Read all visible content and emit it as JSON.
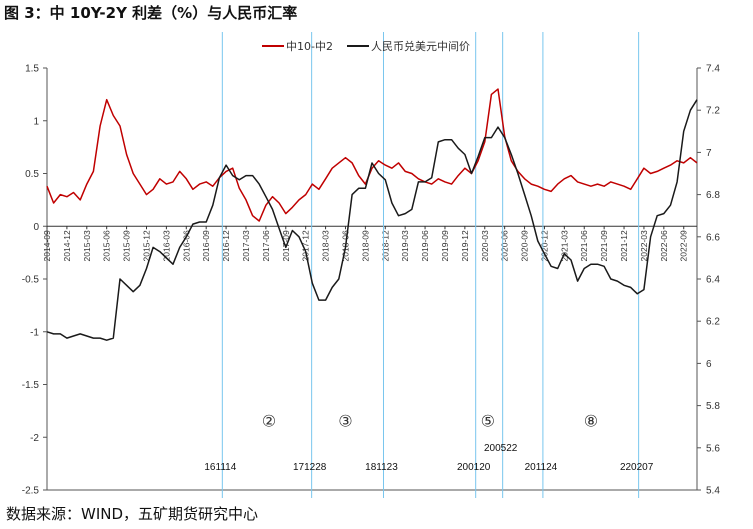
{
  "title": "图 3：中 10Y-2Y 利差（%）与人民币汇率",
  "source": "数据来源：WIND，五矿期货研究中心",
  "chart_data": {
    "type": "line",
    "title": "图 3：中 10Y-2Y 利差（%）与人民币汇率",
    "x_start": "2014-09",
    "x_end": "2022-11",
    "x_tick_labels": [
      "2014-09",
      "2014-12",
      "2015-03",
      "2015-06",
      "2015-09",
      "2015-12",
      "2016-03",
      "2016-06",
      "2016-09",
      "2016-12",
      "2017-03",
      "2017-06",
      "2017-09",
      "2017-12",
      "2018-03",
      "2018-06",
      "2018-09",
      "2018-12",
      "2019-03",
      "2019-06",
      "2019-09",
      "2019-12",
      "2020-03",
      "2020-06",
      "2020-09",
      "2020-12",
      "2021-03",
      "2021-06",
      "2021-09",
      "2021-12",
      "2022-03",
      "2022-06",
      "2022-09"
    ],
    "y_left": {
      "min": -2.5,
      "max": 1.5,
      "ticks": [
        1.5,
        1,
        0.5,
        0,
        -0.5,
        -1,
        -1.5,
        -2,
        -2.5
      ],
      "tick_labels": [
        "1.5",
        "1",
        "0.5",
        "0",
        "-0.5",
        "-1",
        "-1.5",
        "-2",
        "-2.5"
      ]
    },
    "y_right": {
      "min": 5.4,
      "max": 7.4,
      "ticks": [
        7.4,
        7.2,
        7,
        6.8,
        6.6,
        6.4,
        6.2,
        6,
        5.8,
        5.6,
        5.4
      ],
      "tick_labels": [
        "7.4",
        "7.2",
        "7",
        "6.8",
        "6.6",
        "6.4",
        "6.2",
        "6",
        "5.8",
        "5.6",
        "5.4"
      ]
    },
    "legend": {
      "position": "top-center"
    },
    "series": [
      {
        "name": "中10-中2",
        "axis": "left",
        "color": "#c00000",
        "points": [
          [
            "2014-09",
            0.38
          ],
          [
            "2014-10",
            0.22
          ],
          [
            "2014-11",
            0.3
          ],
          [
            "2014-12",
            0.28
          ],
          [
            "2015-01",
            0.32
          ],
          [
            "2015-02",
            0.25
          ],
          [
            "2015-03",
            0.4
          ],
          [
            "2015-04",
            0.52
          ],
          [
            "2015-05",
            0.95
          ],
          [
            "2015-06",
            1.2
          ],
          [
            "2015-07",
            1.05
          ],
          [
            "2015-08",
            0.95
          ],
          [
            "2015-09",
            0.68
          ],
          [
            "2015-10",
            0.5
          ],
          [
            "2015-11",
            0.4
          ],
          [
            "2015-12",
            0.3
          ],
          [
            "2016-01",
            0.35
          ],
          [
            "2016-02",
            0.45
          ],
          [
            "2016-03",
            0.4
          ],
          [
            "2016-04",
            0.42
          ],
          [
            "2016-05",
            0.52
          ],
          [
            "2016-06",
            0.45
          ],
          [
            "2016-07",
            0.35
          ],
          [
            "2016-08",
            0.4
          ],
          [
            "2016-09",
            0.42
          ],
          [
            "2016-10",
            0.38
          ],
          [
            "2016-11",
            0.46
          ],
          [
            "2016-12",
            0.52
          ],
          [
            "2017-01",
            0.55
          ],
          [
            "2017-02",
            0.36
          ],
          [
            "2017-03",
            0.25
          ],
          [
            "2017-04",
            0.1
          ],
          [
            "2017-05",
            0.05
          ],
          [
            "2017-06",
            0.2
          ],
          [
            "2017-07",
            0.28
          ],
          [
            "2017-08",
            0.22
          ],
          [
            "2017-09",
            0.12
          ],
          [
            "2017-10",
            0.18
          ],
          [
            "2017-11",
            0.25
          ],
          [
            "2017-12",
            0.3
          ],
          [
            "2018-01",
            0.4
          ],
          [
            "2018-02",
            0.35
          ],
          [
            "2018-03",
            0.45
          ],
          [
            "2018-04",
            0.55
          ],
          [
            "2018-05",
            0.6
          ],
          [
            "2018-06",
            0.65
          ],
          [
            "2018-07",
            0.6
          ],
          [
            "2018-08",
            0.48
          ],
          [
            "2018-09",
            0.4
          ],
          [
            "2018-10",
            0.55
          ],
          [
            "2018-11",
            0.62
          ],
          [
            "2018-12",
            0.58
          ],
          [
            "2019-01",
            0.55
          ],
          [
            "2019-02",
            0.6
          ],
          [
            "2019-03",
            0.52
          ],
          [
            "2019-04",
            0.5
          ],
          [
            "2019-05",
            0.45
          ],
          [
            "2019-06",
            0.42
          ],
          [
            "2019-07",
            0.4
          ],
          [
            "2019-08",
            0.45
          ],
          [
            "2019-09",
            0.42
          ],
          [
            "2019-10",
            0.4
          ],
          [
            "2019-11",
            0.48
          ],
          [
            "2019-12",
            0.55
          ],
          [
            "2020-01",
            0.5
          ],
          [
            "2020-02",
            0.62
          ],
          [
            "2020-03",
            0.8
          ],
          [
            "2020-04",
            1.25
          ],
          [
            "2020-05",
            1.3
          ],
          [
            "2020-06",
            0.85
          ],
          [
            "2020-07",
            0.62
          ],
          [
            "2020-08",
            0.52
          ],
          [
            "2020-09",
            0.45
          ],
          [
            "2020-10",
            0.4
          ],
          [
            "2020-11",
            0.38
          ],
          [
            "2020-12",
            0.35
          ],
          [
            "2021-01",
            0.33
          ],
          [
            "2021-02",
            0.4
          ],
          [
            "2021-03",
            0.45
          ],
          [
            "2021-04",
            0.48
          ],
          [
            "2021-05",
            0.42
          ],
          [
            "2021-06",
            0.4
          ],
          [
            "2021-07",
            0.38
          ],
          [
            "2021-08",
            0.4
          ],
          [
            "2021-09",
            0.38
          ],
          [
            "2021-10",
            0.42
          ],
          [
            "2021-11",
            0.4
          ],
          [
            "2021-12",
            0.38
          ],
          [
            "2022-01",
            0.35
          ],
          [
            "2022-02",
            0.45
          ],
          [
            "2022-03",
            0.55
          ],
          [
            "2022-04",
            0.5
          ],
          [
            "2022-05",
            0.52
          ],
          [
            "2022-06",
            0.55
          ],
          [
            "2022-07",
            0.58
          ],
          [
            "2022-08",
            0.62
          ],
          [
            "2022-09",
            0.6
          ],
          [
            "2022-10",
            0.65
          ],
          [
            "2022-11",
            0.6
          ]
        ]
      },
      {
        "name": "人民币兑美元中间价",
        "axis": "right",
        "color": "#1a1a1a",
        "points": [
          [
            "2014-09",
            6.15
          ],
          [
            "2014-10",
            6.14
          ],
          [
            "2014-11",
            6.14
          ],
          [
            "2014-12",
            6.12
          ],
          [
            "2015-01",
            6.13
          ],
          [
            "2015-02",
            6.14
          ],
          [
            "2015-03",
            6.13
          ],
          [
            "2015-04",
            6.12
          ],
          [
            "2015-05",
            6.12
          ],
          [
            "2015-06",
            6.11
          ],
          [
            "2015-07",
            6.12
          ],
          [
            "2015-08",
            6.4
          ],
          [
            "2015-09",
            6.37
          ],
          [
            "2015-10",
            6.34
          ],
          [
            "2015-11",
            6.37
          ],
          [
            "2015-12",
            6.45
          ],
          [
            "2016-01",
            6.55
          ],
          [
            "2016-02",
            6.53
          ],
          [
            "2016-03",
            6.5
          ],
          [
            "2016-04",
            6.47
          ],
          [
            "2016-05",
            6.55
          ],
          [
            "2016-06",
            6.6
          ],
          [
            "2016-07",
            6.66
          ],
          [
            "2016-08",
            6.67
          ],
          [
            "2016-09",
            6.67
          ],
          [
            "2016-10",
            6.75
          ],
          [
            "2016-11",
            6.88
          ],
          [
            "2016-12",
            6.94
          ],
          [
            "2017-01",
            6.89
          ],
          [
            "2017-02",
            6.87
          ],
          [
            "2017-03",
            6.89
          ],
          [
            "2017-04",
            6.89
          ],
          [
            "2017-05",
            6.85
          ],
          [
            "2017-06",
            6.79
          ],
          [
            "2017-07",
            6.73
          ],
          [
            "2017-08",
            6.64
          ],
          [
            "2017-09",
            6.55
          ],
          [
            "2017-10",
            6.63
          ],
          [
            "2017-11",
            6.6
          ],
          [
            "2017-12",
            6.53
          ],
          [
            "2018-01",
            6.38
          ],
          [
            "2018-02",
            6.3
          ],
          [
            "2018-03",
            6.3
          ],
          [
            "2018-04",
            6.36
          ],
          [
            "2018-05",
            6.4
          ],
          [
            "2018-06",
            6.55
          ],
          [
            "2018-07",
            6.8
          ],
          [
            "2018-08",
            6.83
          ],
          [
            "2018-09",
            6.83
          ],
          [
            "2018-10",
            6.95
          ],
          [
            "2018-11",
            6.9
          ],
          [
            "2018-12",
            6.87
          ],
          [
            "2019-01",
            6.76
          ],
          [
            "2019-02",
            6.7
          ],
          [
            "2019-03",
            6.71
          ],
          [
            "2019-04",
            6.73
          ],
          [
            "2019-05",
            6.86
          ],
          [
            "2019-06",
            6.86
          ],
          [
            "2019-07",
            6.88
          ],
          [
            "2019-08",
            7.05
          ],
          [
            "2019-09",
            7.06
          ],
          [
            "2019-10",
            7.06
          ],
          [
            "2019-11",
            7.02
          ],
          [
            "2019-12",
            6.99
          ],
          [
            "2020-01",
            6.9
          ],
          [
            "2020-02",
            6.98
          ],
          [
            "2020-03",
            7.07
          ],
          [
            "2020-04",
            7.07
          ],
          [
            "2020-05",
            7.12
          ],
          [
            "2020-06",
            7.07
          ],
          [
            "2020-07",
            6.99
          ],
          [
            "2020-08",
            6.9
          ],
          [
            "2020-09",
            6.8
          ],
          [
            "2020-10",
            6.7
          ],
          [
            "2020-11",
            6.58
          ],
          [
            "2020-12",
            6.52
          ],
          [
            "2021-01",
            6.46
          ],
          [
            "2021-02",
            6.45
          ],
          [
            "2021-03",
            6.52
          ],
          [
            "2021-04",
            6.49
          ],
          [
            "2021-05",
            6.39
          ],
          [
            "2021-06",
            6.45
          ],
          [
            "2021-07",
            6.47
          ],
          [
            "2021-08",
            6.47
          ],
          [
            "2021-09",
            6.46
          ],
          [
            "2021-10",
            6.4
          ],
          [
            "2021-11",
            6.39
          ],
          [
            "2021-12",
            6.37
          ],
          [
            "2022-01",
            6.36
          ],
          [
            "2022-02",
            6.33
          ],
          [
            "2022-03",
            6.35
          ],
          [
            "2022-04",
            6.6
          ],
          [
            "2022-05",
            6.7
          ],
          [
            "2022-06",
            6.71
          ],
          [
            "2022-07",
            6.75
          ],
          [
            "2022-08",
            6.86
          ],
          [
            "2022-09",
            7.1
          ],
          [
            "2022-10",
            7.2
          ],
          [
            "2022-11",
            7.25
          ]
        ]
      }
    ],
    "vertical_lines": [
      {
        "label": "161114",
        "date": "2016-11-14"
      },
      {
        "label": "171228",
        "date": "2017-12-28"
      },
      {
        "label": "181123",
        "date": "2018-11-23"
      },
      {
        "label": "200120",
        "date": "2020-01-20"
      },
      {
        "label": "200522",
        "date": "2020-05-22"
      },
      {
        "label": "201124",
        "date": "2020-11-24"
      },
      {
        "label": "220207",
        "date": "2022-02-07"
      }
    ],
    "annotations": [
      {
        "text": "②",
        "date": "2017-06-15",
        "y": -1.85
      },
      {
        "text": "③",
        "date": "2018-06-01",
        "y": -1.85
      },
      {
        "text": "⑤",
        "date": "2020-03-15",
        "y": -1.85
      },
      {
        "text": "⑧",
        "date": "2021-07-01",
        "y": -1.85
      }
    ]
  }
}
